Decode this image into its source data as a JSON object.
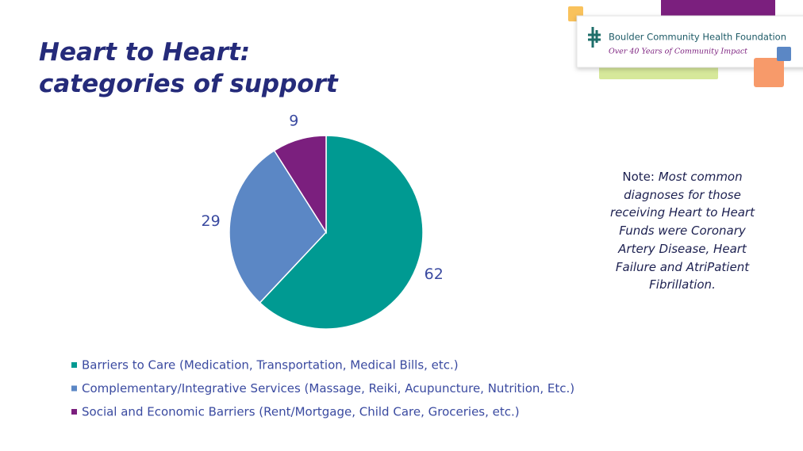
{
  "chart_data": {
    "type": "pie",
    "title": [
      "Heart to Heart:",
      "categories of support"
    ],
    "categories": [
      "Barriers to Care (Medication, Transportation, Medical Bills, etc.)",
      "Complementary/Integrative Services (Massage, Reiki, Acupuncture, Nutrition, Etc.)",
      "Social and Economic Barriers (Rent/Mortgage, Child Care, Groceries, etc.)"
    ],
    "values": [
      62,
      29,
      9
    ],
    "colors": [
      "#009a92",
      "#5b87c5",
      "#7b1f7e"
    ]
  },
  "note": {
    "label": "Note:",
    "text": "Most common diagnoses for those receiving Heart to Heart Funds were Coronary Artery Disease, Heart Failure and AtriPatient Fibrillation."
  },
  "logo": {
    "name": "Boulder Community Health Foundation",
    "tagline": "Over 40 Years of Community Impact"
  }
}
